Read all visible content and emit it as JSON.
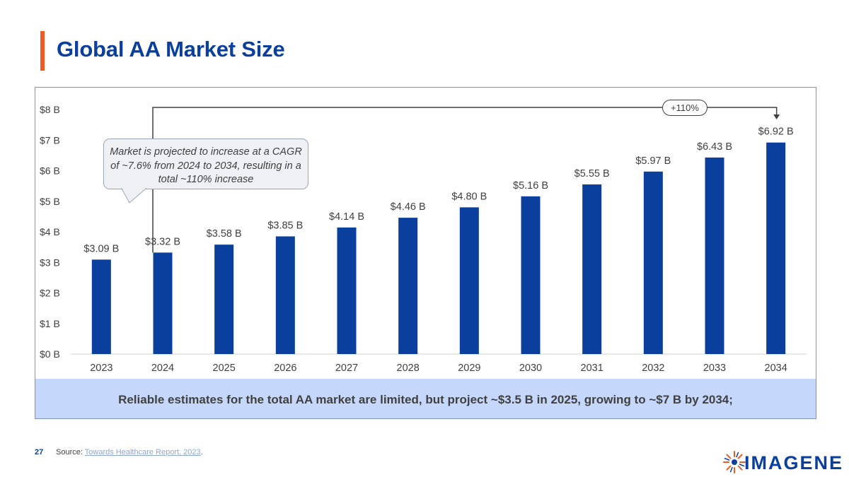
{
  "header": {
    "title": "Global AA Market Size"
  },
  "chart_data": {
    "type": "bar",
    "categories": [
      "2023",
      "2024",
      "2025",
      "2026",
      "2027",
      "2028",
      "2029",
      "2030",
      "2031",
      "2032",
      "2033",
      "2034"
    ],
    "values": [
      3.09,
      3.32,
      3.58,
      3.85,
      4.14,
      4.46,
      4.8,
      5.16,
      5.55,
      5.97,
      6.43,
      6.92
    ],
    "data_labels": [
      "$3.09 B",
      "$3.32 B",
      "$3.58 B",
      "$3.85 B",
      "$4.14 B",
      "$4.46 B",
      "$4.80 B",
      "$5.16 B",
      "$5.55 B",
      "$5.97 B",
      "$6.43 B",
      "$6.92 B"
    ],
    "y_ticks": [
      0,
      1,
      2,
      3,
      4,
      5,
      6,
      7,
      8
    ],
    "y_tick_labels": [
      "$0 B",
      "$1 B",
      "$2 B",
      "$3 B",
      "$4 B",
      "$5 B",
      "$6 B",
      "$7 B",
      "$8 B"
    ],
    "ylim": [
      0,
      8
    ],
    "bar_color": "#0b3f9e",
    "grid": false,
    "annotations": {
      "callout": "Market is projected to increase at a CAGR of ~7.6% from 2024 to 2034, resulting in a total ~110% increase",
      "increase_label": "+110%",
      "arrow_from_category": "2024",
      "arrow_to_category": "2034"
    }
  },
  "summary": {
    "text": "Reliable estimates for the total AA market are limited, but project ~$3.5 B in 2025, growing to ~$7 B by 2034;"
  },
  "footer": {
    "page_number": "27",
    "source_prefix": "Source: ",
    "source_link": "Towards Healthcare Report, 2023",
    "source_suffix": ".",
    "logo_text": "IMAGENE"
  },
  "colors": {
    "accent": "#f05a22",
    "brand": "#0b3f9e",
    "band": "#c5d8fb"
  }
}
